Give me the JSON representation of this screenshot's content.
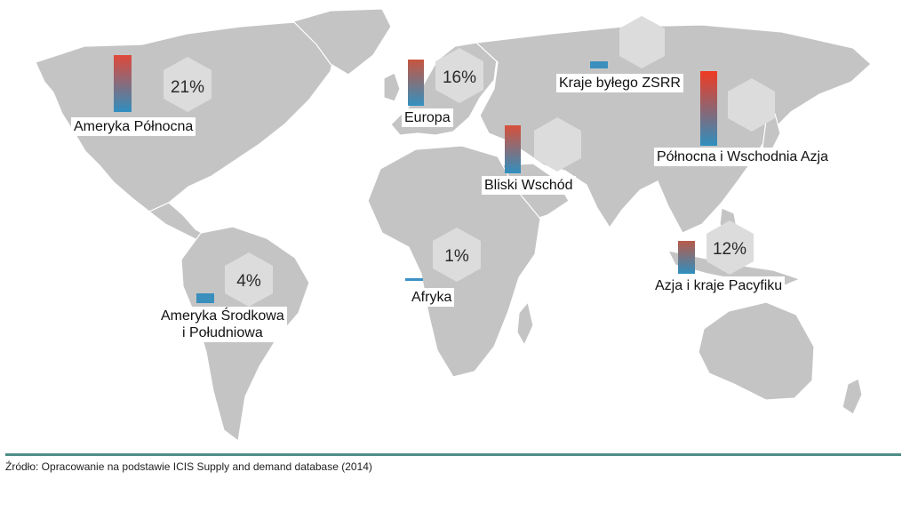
{
  "regions": [
    {
      "id": "north-america",
      "label": "Ameryka Północna",
      "share_percent": 21,
      "share_label": "21%",
      "bar_gradient": [
        "#e0483a",
        "#2f8fbf"
      ]
    },
    {
      "id": "europe",
      "label": "Europa",
      "share_percent": 16,
      "share_label": "16%",
      "bar_gradient": [
        "#c8553f",
        "#3391c0"
      ]
    },
    {
      "id": "former-ussr",
      "label": "Kraje byłego ZSRR",
      "share_percent": null,
      "share_label": "",
      "bar_gradient": [
        "#3a8fbd",
        "#2f8fbf"
      ]
    },
    {
      "id": "north-east-asia",
      "label": "Północna i Wschodnia Azja",
      "share_percent": null,
      "share_label": "",
      "bar_gradient": [
        "#f03a22",
        "#2f8fbf"
      ]
    },
    {
      "id": "middle-east",
      "label": "Bliski Wschód",
      "share_percent": null,
      "share_label": "",
      "bar_gradient": [
        "#d8503a",
        "#2f8fbf"
      ]
    },
    {
      "id": "africa",
      "label": "Afryka",
      "share_percent": 1,
      "share_label": "1%",
      "bar_gradient": [
        "#3a93c4",
        "#3a93c4"
      ]
    },
    {
      "id": "asia-pacific",
      "label": "Azja i kraje Pacyfiku",
      "share_percent": 12,
      "share_label": "12%",
      "bar_gradient": [
        "#b85a4a",
        "#2f8fbf"
      ]
    },
    {
      "id": "south-america",
      "label_line1": "Ameryka Środkowa",
      "label_line2": "i Południowa",
      "share_percent": 4,
      "share_label": "4%",
      "bar_gradient": [
        "#3a8fbd",
        "#2f8fbf"
      ]
    }
  ],
  "source": "Źródło: Opracowanie na podstawie ICIS Supply and demand database (2014)",
  "colors": {
    "land": "#c4c4c4",
    "hexagon": "#dcdcdc",
    "rule": "#4f8c87"
  }
}
